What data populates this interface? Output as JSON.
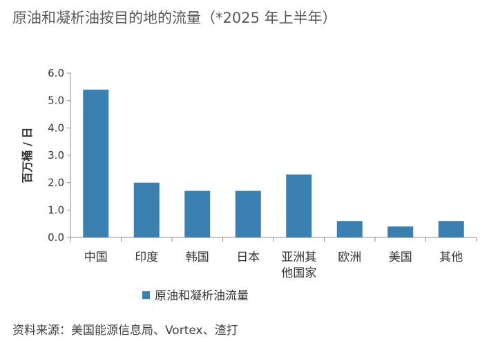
{
  "title": "原油和凝析油按目的地的流量（*2025 年上半年）",
  "source": "资料来源：美国能源信息局、Vortex、渣打",
  "chart_data": {
    "type": "bar",
    "title": "原油和凝析油按目的地的流量（*2025 年上半年）",
    "ylabel": "百万桶 / 日",
    "xlabel": "",
    "ylim": [
      0,
      6
    ],
    "yticks": [
      "0.0",
      "1.0",
      "2.0",
      "3.0",
      "4.0",
      "5.0",
      "6.0"
    ],
    "categories": [
      "中国",
      "印度",
      "韩国",
      "日本",
      "亚洲其他国家",
      "欧洲",
      "美国",
      "其他"
    ],
    "category_lines": [
      [
        "中国"
      ],
      [
        "印度"
      ],
      [
        "韩国"
      ],
      [
        "日本"
      ],
      [
        "亚洲其",
        "他国家"
      ],
      [
        "欧洲"
      ],
      [
        "美国"
      ],
      [
        "其他"
      ]
    ],
    "series": [
      {
        "name": "原油和凝析油流量",
        "values": [
          5.4,
          2.0,
          1.7,
          1.7,
          2.3,
          0.6,
          0.4,
          0.6
        ],
        "color": "#3a80b0"
      }
    ],
    "grid": false,
    "legend": "bottom"
  }
}
